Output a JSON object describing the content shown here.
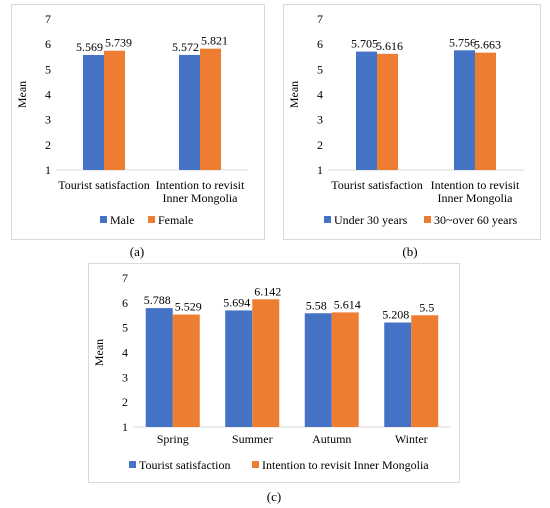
{
  "colors": {
    "series1": "#4472C4",
    "series2": "#ED7D31",
    "axis": "#000000",
    "grid": "#d9d9d9"
  },
  "charts": {
    "a": {
      "panel_label": "(a)"
    },
    "b": {
      "panel_label": "(b)"
    },
    "c": {
      "panel_label": "(c)"
    }
  },
  "chart_data": [
    {
      "type": "bar",
      "ylabel": "Mean",
      "ylim": [
        1,
        7
      ],
      "yticks": [
        1,
        2,
        3,
        4,
        5,
        6,
        7
      ],
      "categories": [
        "Tourist satisfaction",
        "Intention to revisit|Inner Mongolia"
      ],
      "series": [
        {
          "name": "Male",
          "values": [
            5.569,
            5.572
          ]
        },
        {
          "name": "Female",
          "values": [
            5.739,
            5.821
          ]
        }
      ],
      "legend": "bottom"
    },
    {
      "type": "bar",
      "ylabel": "Mean",
      "ylim": [
        1,
        7
      ],
      "yticks": [
        1,
        2,
        3,
        4,
        5,
        6,
        7
      ],
      "categories": [
        "Tourist satisfaction",
        "Intention to revisit|Inner Mongolia"
      ],
      "series": [
        {
          "name": "Under 30 years",
          "values": [
            5.705,
            5.756
          ]
        },
        {
          "name": "30~over 60 years",
          "values": [
            5.616,
            5.663
          ]
        }
      ],
      "legend": "bottom"
    },
    {
      "type": "bar",
      "ylabel": "Mean",
      "ylim": [
        1,
        7
      ],
      "yticks": [
        1,
        2,
        3,
        4,
        5,
        6,
        7
      ],
      "categories": [
        "Spring",
        "Summer",
        "Autumn",
        "Winter"
      ],
      "series": [
        {
          "name": "Tourist satisfaction",
          "values": [
            5.788,
            5.694,
            5.58,
            5.208
          ]
        },
        {
          "name": "Intention to revisit Inner Mongolia",
          "values": [
            5.529,
            6.142,
            5.614,
            5.5
          ]
        }
      ],
      "legend": "bottom"
    }
  ]
}
